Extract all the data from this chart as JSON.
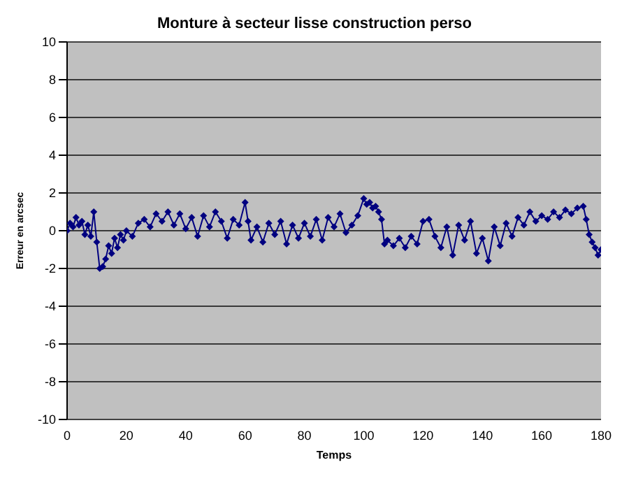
{
  "chart_data": {
    "type": "line",
    "title": "Monture à secteur lisse construction perso",
    "xlabel": "Temps",
    "ylabel": "Erreur en arcsec",
    "xlim": [
      0,
      180
    ],
    "xticks": [
      0,
      20,
      40,
      60,
      80,
      100,
      120,
      140,
      160,
      180
    ],
    "ylim": [
      -10,
      10
    ],
    "yticks": [
      -10,
      -8,
      -6,
      -4,
      -2,
      0,
      2,
      4,
      6,
      8,
      10
    ],
    "grid": "y",
    "marker": "diamond",
    "line_style": "solid",
    "series": [
      {
        "color": "#000080",
        "x": [
          0,
          1,
          2,
          3,
          4,
          5,
          6,
          7,
          8,
          9,
          10,
          11,
          12,
          13,
          14,
          15,
          16,
          17,
          18,
          19,
          20,
          22,
          24,
          26,
          28,
          30,
          32,
          34,
          36,
          38,
          40,
          42,
          44,
          46,
          48,
          50,
          52,
          54,
          56,
          58,
          60,
          61,
          62,
          64,
          66,
          68,
          70,
          72,
          74,
          76,
          78,
          80,
          82,
          84,
          86,
          88,
          90,
          92,
          94,
          96,
          98,
          100,
          101,
          102,
          103,
          104,
          105,
          106,
          107,
          108,
          110,
          112,
          114,
          116,
          118,
          120,
          122,
          124,
          126,
          128,
          130,
          132,
          134,
          136,
          138,
          140,
          142,
          144,
          146,
          148,
          150,
          152,
          154,
          156,
          158,
          160,
          162,
          164,
          166,
          168,
          170,
          172,
          174,
          175,
          176,
          177,
          178,
          179,
          180
        ],
        "values": [
          0,
          0.4,
          0.2,
          0.7,
          0.3,
          0.5,
          -0.2,
          0.3,
          -0.3,
          1.0,
          -0.6,
          -2.0,
          -1.9,
          -1.5,
          -0.8,
          -1.2,
          -0.4,
          -0.9,
          -0.2,
          -0.5,
          0,
          -0.3,
          0.4,
          0.6,
          0.2,
          0.9,
          0.5,
          1.0,
          0.3,
          0.9,
          0.1,
          0.7,
          -0.3,
          0.8,
          0.2,
          1.0,
          0.5,
          -0.4,
          0.6,
          0.3,
          1.5,
          0.5,
          -0.5,
          0.2,
          -0.6,
          0.4,
          -0.2,
          0.5,
          -0.7,
          0.3,
          -0.4,
          0.4,
          -0.3,
          0.6,
          -0.5,
          0.7,
          0.2,
          0.9,
          -0.1,
          0.3,
          0.8,
          1.7,
          1.4,
          1.5,
          1.2,
          1.3,
          1.0,
          0.6,
          -0.7,
          -0.5,
          -0.8,
          -0.4,
          -0.9,
          -0.3,
          -0.7,
          0.5,
          0.6,
          -0.3,
          -0.9,
          0.2,
          -1.3,
          0.3,
          -0.5,
          0.5,
          -1.2,
          -0.4,
          -1.6,
          0.2,
          -0.8,
          0.4,
          -0.3,
          0.7,
          0.3,
          1.0,
          0.5,
          0.8,
          0.6,
          1.0,
          0.7,
          1.1,
          0.9,
          1.2,
          1.3,
          0.6,
          -0.2,
          -0.6,
          -0.9,
          -1.3,
          -1.0
        ]
      }
    ]
  }
}
